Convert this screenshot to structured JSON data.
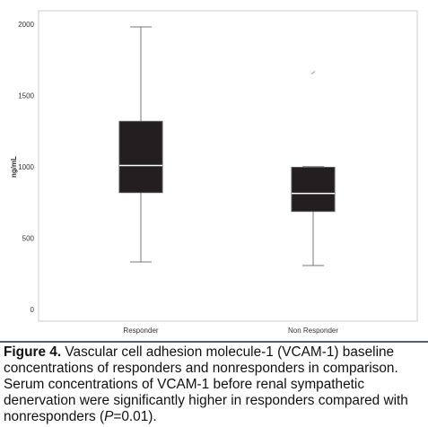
{
  "chart_data": {
    "type": "box",
    "y_label": "ng/mL",
    "categories": [
      "Responder",
      "Non Responder"
    ],
    "boxes": [
      {
        "low": 340,
        "q1": 826,
        "median": 1016,
        "q3": 1325,
        "high": 1987,
        "outliers": []
      },
      {
        "low": 315,
        "q1": 694,
        "median": 820,
        "q3": 1003,
        "high": 1008,
        "outliers": [
          1666
        ]
      }
    ],
    "color": "#231f20",
    "median_color": "#ffffff",
    "ylim": [
      -75,
      2100
    ],
    "yticks": [
      0,
      500,
      1000,
      1500,
      2000
    ],
    "grid": false
  },
  "caption": {
    "label": "Figure 4.",
    "text_before": "Vascular cell adhesion molecule-1 (VCAM-1) baseline concentrations of responders and nonresponders in comparison. Serum concentrations of VCAM-1 before renal sympathetic denervation were significantly higher in responders compared with nonresponders (",
    "italic": "P",
    "text_after": "=0.01)."
  }
}
